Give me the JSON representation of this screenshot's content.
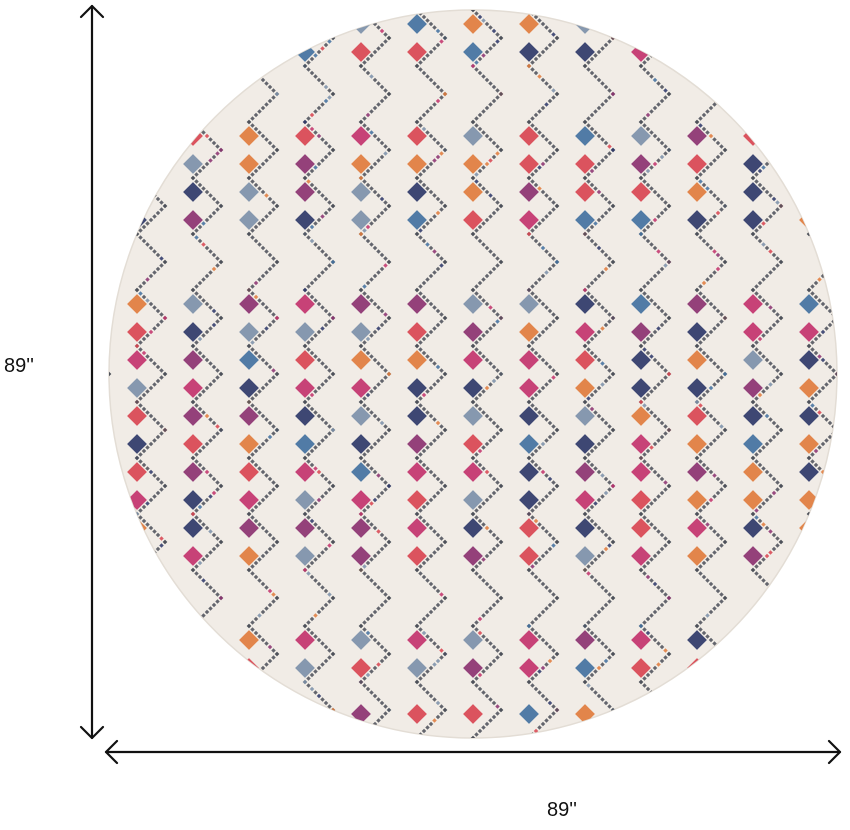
{
  "dimensions": {
    "height_label": "89''",
    "width_label": "89''"
  },
  "rug": {
    "shape": "round",
    "base_color": "#f1ece6",
    "lattice_color": "#4a4d57",
    "accent_colors": [
      "#2a3566",
      "#8a2f6e",
      "#d8434f",
      "#3f6f9e",
      "#e07a3a",
      "#7a8fa8",
      "#c2306a"
    ]
  },
  "icons": {
    "height_arrow": "vertical-double-arrow-icon",
    "width_arrow": "horizontal-double-arrow-icon"
  }
}
